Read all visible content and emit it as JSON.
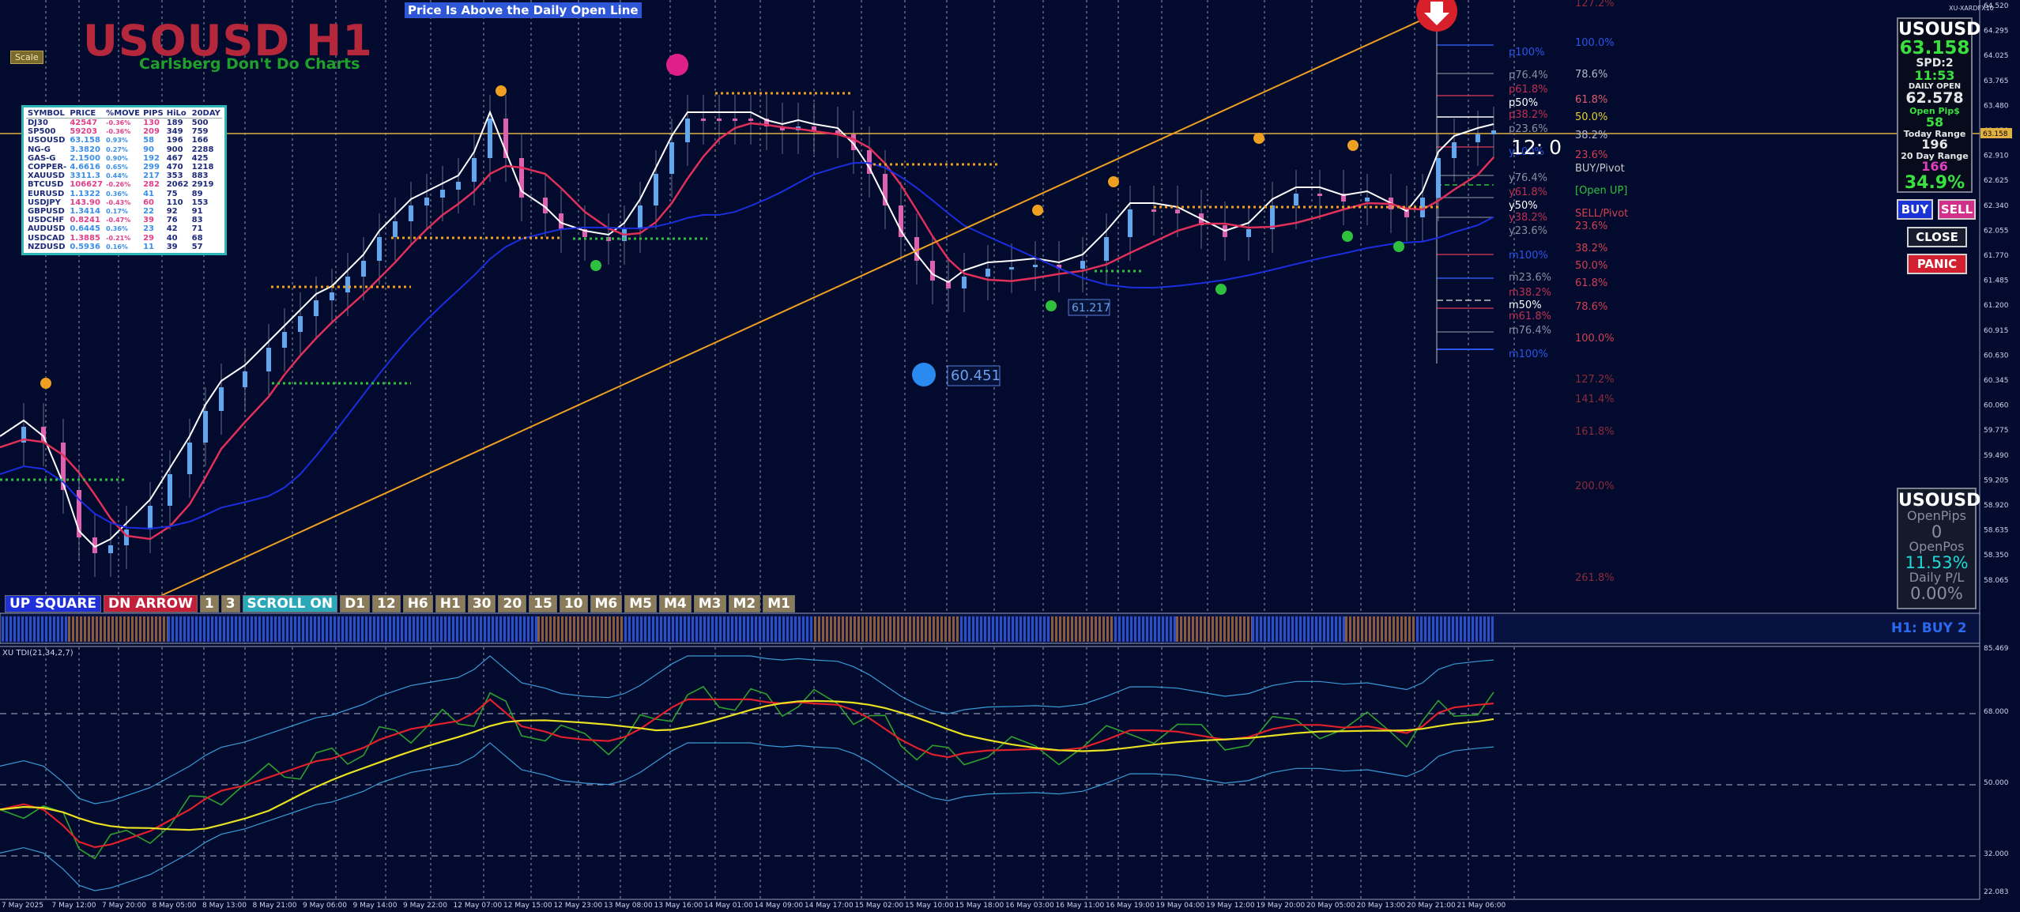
{
  "header": {
    "symbol_title": "USOUSD H1",
    "subtitle": "Carlsberg Don't Do Charts",
    "scale_label": "Scale",
    "banner": "Price Is Above the Daily Open Line",
    "broker": "XU-XARDFX10"
  },
  "symbol_table": {
    "headers": [
      "SYMBOL",
      "PRICE",
      "%MOVE",
      "PIPS",
      "HiLo",
      "20DAY"
    ],
    "rows": [
      {
        "symbol": "DJ30",
        "price": "42547",
        "move": "-0.36%",
        "pips": "130",
        "hilo": "189",
        "d20": "500",
        "color": "#e0408a"
      },
      {
        "symbol": "SP500",
        "price": "59203",
        "move": "-0.36%",
        "pips": "209",
        "hilo": "349",
        "d20": "759",
        "color": "#e0408a"
      },
      {
        "symbol": "USOUSD",
        "price": "63.158",
        "move": "0.93%",
        "pips": "58",
        "hilo": "196",
        "d20": "166",
        "color": "#3a8ee8"
      },
      {
        "symbol": "NG-G",
        "price": "3.3820",
        "move": "0.27%",
        "pips": "90",
        "hilo": "900",
        "d20": "2288",
        "color": "#3a8ee8"
      },
      {
        "symbol": "GAS-G",
        "price": "2.1500",
        "move": "0.90%",
        "pips": "192",
        "hilo": "467",
        "d20": "425",
        "color": "#3a8ee8"
      },
      {
        "symbol": "COPPER-",
        "price": "4.6616",
        "move": "0.65%",
        "pips": "299",
        "hilo": "470",
        "d20": "1218",
        "color": "#3a8ee8"
      },
      {
        "symbol": "XAUUSD",
        "price": "3311.3",
        "move": "0.44%",
        "pips": "217",
        "hilo": "353",
        "d20": "883",
        "color": "#3a8ee8"
      },
      {
        "symbol": "BTCUSD",
        "price": "106627",
        "move": "-0.26%",
        "pips": "282",
        "hilo": "2062",
        "d20": "2919",
        "color": "#e0408a"
      },
      {
        "symbol": "EURUSD",
        "price": "1.1322",
        "move": "0.36%",
        "pips": "41",
        "hilo": "75",
        "d20": "89",
        "color": "#3a8ee8"
      },
      {
        "symbol": "USDJPY",
        "price": "143.90",
        "move": "-0.43%",
        "pips": "60",
        "hilo": "110",
        "d20": "153",
        "color": "#e0408a"
      },
      {
        "symbol": "GBPUSD",
        "price": "1.3414",
        "move": "0.17%",
        "pips": "22",
        "hilo": "92",
        "d20": "91",
        "color": "#3a8ee8"
      },
      {
        "symbol": "USDCHF",
        "price": "0.8241",
        "move": "-0.47%",
        "pips": "39",
        "hilo": "76",
        "d20": "83",
        "color": "#e0408a"
      },
      {
        "symbol": "AUDUSD",
        "price": "0.6445",
        "move": "0.36%",
        "pips": "23",
        "hilo": "42",
        "d20": "71",
        "color": "#3a8ee8"
      },
      {
        "symbol": "USDCAD",
        "price": "1.3885",
        "move": "-0.21%",
        "pips": "29",
        "hilo": "40",
        "d20": "68",
        "color": "#e0408a"
      },
      {
        "symbol": "NZDUSD",
        "price": "0.5936",
        "move": "0.16%",
        "pips": "11",
        "hilo": "39",
        "d20": "57",
        "color": "#3a8ee8"
      }
    ]
  },
  "toolbar": {
    "buttons": [
      {
        "label": "UP SQUARE",
        "bg": "#2030d8"
      },
      {
        "label": "DN ARROW",
        "bg": "#c2203a"
      },
      {
        "label": "1",
        "bg": "#8a7b5a"
      },
      {
        "label": "3",
        "bg": "#8a7b5a"
      },
      {
        "label": "SCROLL ON",
        "bg": "#2aa8b8"
      },
      {
        "label": "D1",
        "bg": "#8a7b5a"
      },
      {
        "label": "12",
        "bg": "#8a7b5a"
      },
      {
        "label": "H6",
        "bg": "#8a7b5a"
      },
      {
        "label": "H1",
        "bg": "#8a7b5a"
      },
      {
        "label": "30",
        "bg": "#8a7b5a"
      },
      {
        "label": "20",
        "bg": "#8a7b5a"
      },
      {
        "label": "15",
        "bg": "#8a7b5a"
      },
      {
        "label": "10",
        "bg": "#8a7b5a"
      },
      {
        "label": "M6",
        "bg": "#8a7b5a"
      },
      {
        "label": "M5",
        "bg": "#8a7b5a"
      },
      {
        "label": "M4",
        "bg": "#8a7b5a"
      },
      {
        "label": "M3",
        "bg": "#8a7b5a"
      },
      {
        "label": "M2",
        "bg": "#8a7b5a"
      },
      {
        "label": "M1",
        "bg": "#8a7b5a"
      }
    ]
  },
  "info_panel": {
    "symbol": "USOUSD",
    "price": "63.158",
    "spread": "SPD:2",
    "time": "11:53",
    "daily_open_label": "DAILY OPEN",
    "daily_open": "62.578",
    "open_pips_label": "Open Pip$",
    "open_pips": "58",
    "today_range_label": "Today Range",
    "today_range": "196",
    "day20_label": "20 Day Range",
    "day20": "166",
    "percent": "34.9%"
  },
  "trade_buttons": {
    "buy": "BUY",
    "sell": "SELL",
    "close": "CLOSE",
    "panic": "PANIC"
  },
  "pips_panel": {
    "symbol": "USOUSD",
    "open_pips_label": "OpenPips",
    "open_pips": "0",
    "open_pos_label": "OpenPos",
    "open_pos": "11.53%",
    "daily_pl_label": "Daily P/L",
    "daily_pl": "0.00%"
  },
  "chart": {
    "countdown": "12: 0",
    "low_label": "60.451",
    "swing_label": "61.217",
    "status_strip_label": "H1: BUY 2",
    "oscillator_label": "XU TDI(21,34,2,7)",
    "price_axis": [
      "64.520",
      "64.295",
      "64.025",
      "63.765",
      "63.480",
      "63.158",
      "62.910",
      "62.625",
      "62.340",
      "62.055",
      "61.770",
      "61.485",
      "61.200",
      "60.915",
      "60.630",
      "60.345",
      "60.060",
      "59.775",
      "59.490",
      "59.205",
      "58.920",
      "58.635",
      "58.350",
      "58.065"
    ],
    "osc_axis": [
      "85.469",
      "68.000",
      "50.000",
      "32.000",
      "22.083"
    ],
    "time_axis": [
      "7 May 2025",
      "7 May 12:00",
      "7 May 20:00",
      "8 May 05:00",
      "8 May 13:00",
      "8 May 21:00",
      "9 May 06:00",
      "9 May 14:00",
      "9 May 22:00",
      "12 May 07:00",
      "12 May 15:00",
      "12 May 23:00",
      "13 May 08:00",
      "13 May 16:00",
      "14 May 01:00",
      "14 May 09:00",
      "14 May 17:00",
      "15 May 02:00",
      "15 May 10:00",
      "15 May 18:00",
      "16 May 03:00",
      "16 May 11:00",
      "16 May 19:00",
      "19 May 04:00",
      "19 May 12:00",
      "19 May 20:00",
      "20 May 05:00",
      "20 May 13:00",
      "20 May 21:00",
      "21 May 06:00"
    ],
    "fib_right": [
      {
        "label": "127.2%",
        "color": "#8c2a3a"
      },
      {
        "label": "100.0%",
        "color": "#2a56e8"
      },
      {
        "label": "78.6%",
        "color": "#b2b8c8"
      },
      {
        "label": "61.8%",
        "color": "#e05a6a"
      },
      {
        "label": "50.0%",
        "color": "#e8d030"
      },
      {
        "label": "38.2%",
        "color": "#b2b8c8"
      },
      {
        "label": "23.6%",
        "color": "#d04050"
      },
      {
        "label": "BUY/Pivot",
        "color": "#c8c8c8"
      },
      {
        "label": "[Open UP]",
        "color": "#30c040"
      },
      {
        "label": "SELL/Pivot",
        "color": "#d04050"
      },
      {
        "label": "23.6%",
        "color": "#d04050"
      },
      {
        "label": "38.2%",
        "color": "#d04050"
      },
      {
        "label": "50.0%",
        "color": "#d04050"
      },
      {
        "label": "61.8%",
        "color": "#d04050"
      },
      {
        "label": "78.6%",
        "color": "#d04050"
      },
      {
        "label": "100.0%",
        "color": "#d04050"
      },
      {
        "label": "127.2%",
        "color": "#8c2a3a"
      },
      {
        "label": "141.4%",
        "color": "#8c2a3a"
      },
      {
        "label": "161.8%",
        "color": "#8c2a3a"
      },
      {
        "label": "200.0%",
        "color": "#8c2a3a"
      },
      {
        "label": "261.8%",
        "color": "#8c2a3a"
      }
    ],
    "fib_left": [
      {
        "label": "p100%",
        "color": "#2a56e8"
      },
      {
        "label": "p76.4%",
        "color": "#8a8ea0"
      },
      {
        "label": "p61.8%",
        "color": "#c03050"
      },
      {
        "label": "p50%",
        "color": "#ffffff"
      },
      {
        "label": "p38.2%",
        "color": "#c03050"
      },
      {
        "label": "p23.6%",
        "color": "#8a8ea0"
      },
      {
        "label": "y100%",
        "color": "#2a56e8"
      },
      {
        "label": "y76.4%",
        "color": "#8a8ea0"
      },
      {
        "label": "y61.8%",
        "color": "#c03050"
      },
      {
        "label": "y50%",
        "color": "#ffffff"
      },
      {
        "label": "y38.2%",
        "color": "#c03050"
      },
      {
        "label": "y23.6%",
        "color": "#8a8ea0"
      },
      {
        "label": "m100%",
        "color": "#2a56e8"
      },
      {
        "label": "m23.6%",
        "color": "#8a8ea0"
      },
      {
        "label": "m38.2%",
        "color": "#c03050"
      },
      {
        "label": "m50%",
        "color": "#ffffff"
      },
      {
        "label": "m61.8%",
        "color": "#c03050"
      },
      {
        "label": "m76.4%",
        "color": "#8a8ea0"
      },
      {
        "label": "m100%",
        "color": "#2a56e8"
      }
    ]
  },
  "colors": {
    "background": "#020a2e",
    "bull": "#5fa8f0",
    "bear": "#e060b0",
    "ma_fast": "#ffffff",
    "ma_mid": "#e0305a",
    "ma_slow": "#1a2ee0",
    "trendline": "#f0a020",
    "open_line": "#e0b040"
  }
}
